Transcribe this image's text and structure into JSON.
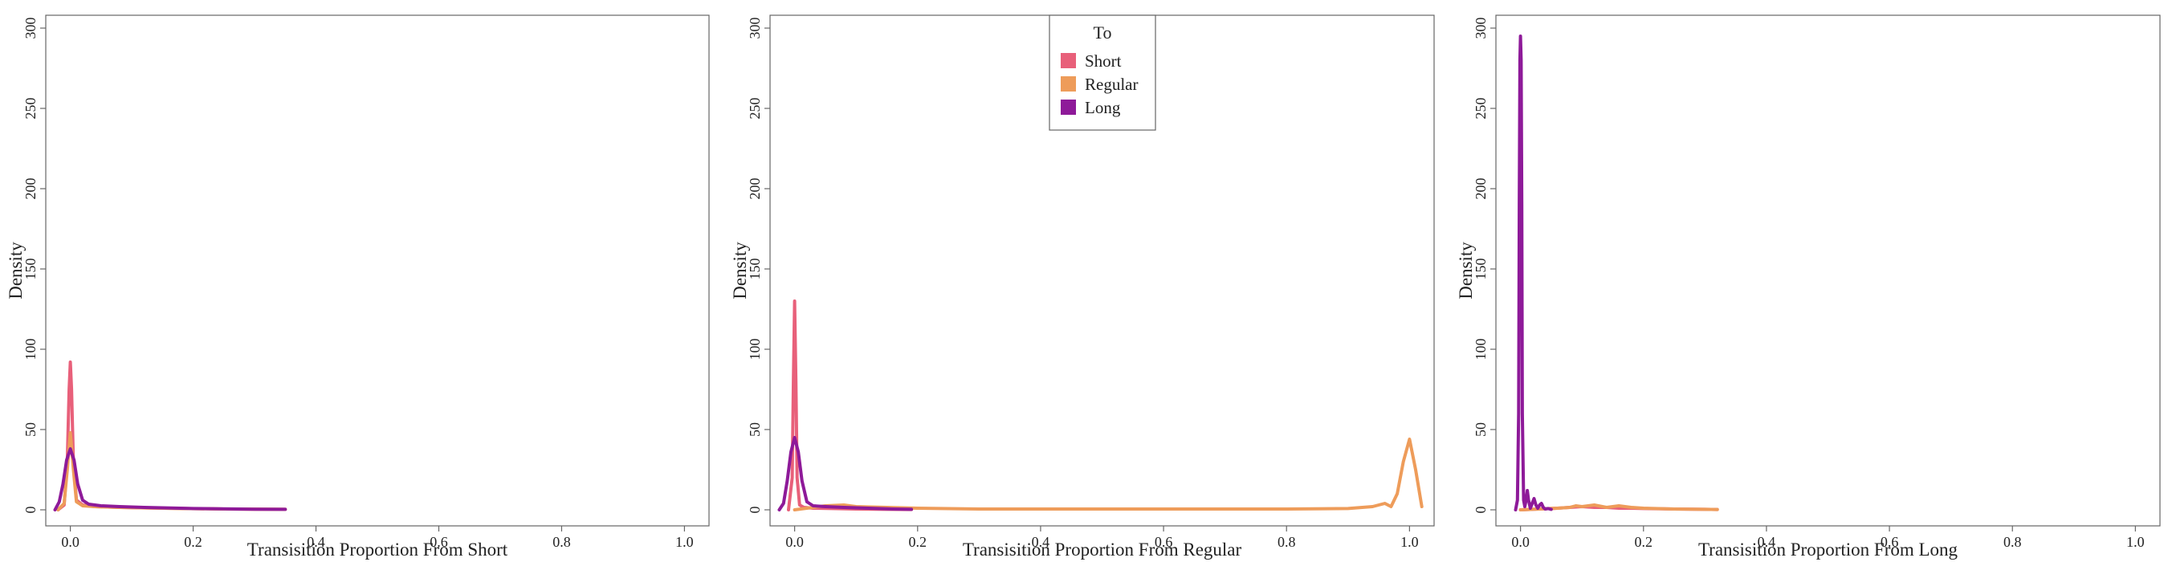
{
  "legend": {
    "title": "To",
    "placement": "top-center",
    "entries": [
      {
        "name": "Short",
        "color": "#E8607A"
      },
      {
        "name": "Regular",
        "color": "#EE9C5A"
      },
      {
        "name": "Long",
        "color": "#8E1A99"
      }
    ]
  },
  "chart_data": [
    {
      "type": "line",
      "xlabel": "Transisition Proportion From Short",
      "ylabel": "Density",
      "xlim": [
        -0.04,
        1.04
      ],
      "ylim": [
        -10,
        308
      ],
      "xticks": [
        0.0,
        0.2,
        0.4,
        0.6,
        0.8,
        1.0
      ],
      "xtick_labels": [
        "0.0",
        "0.2",
        "0.4",
        "0.6",
        "0.8",
        "1.0"
      ],
      "yticks": [
        0,
        50,
        100,
        150,
        200,
        250,
        300
      ],
      "ytick_labels": [
        "0",
        "50",
        "100",
        "150",
        "200",
        "250",
        "300"
      ],
      "grid": false,
      "series": [
        {
          "name": "Short",
          "x": [
            -0.02,
            -0.01,
            -0.005,
            -0.002,
            0.0,
            0.002,
            0.005,
            0.01,
            0.02,
            0.04,
            0.08,
            0.15,
            0.25,
            0.35
          ],
          "y": [
            0,
            3,
            30,
            75,
            92,
            75,
            30,
            6,
            3,
            2,
            1.5,
            1,
            0.5,
            0.3
          ]
        },
        {
          "name": "Regular",
          "x": [
            -0.02,
            -0.01,
            -0.005,
            0.0,
            0.005,
            0.01,
            0.02,
            0.04,
            0.08,
            0.15,
            0.25,
            0.35
          ],
          "y": [
            0,
            4,
            25,
            48,
            25,
            5,
            2.5,
            2,
            1.5,
            1,
            0.5,
            0.3
          ]
        },
        {
          "name": "Long",
          "x": [
            -0.025,
            -0.018,
            -0.012,
            -0.006,
            0.0,
            0.006,
            0.012,
            0.02,
            0.03,
            0.05,
            0.08,
            0.12,
            0.2,
            0.3,
            0.35
          ],
          "y": [
            0,
            5,
            16,
            31,
            38,
            31,
            16,
            6,
            3.5,
            2.5,
            2,
            1.5,
            0.8,
            0.4,
            0.3
          ]
        }
      ]
    },
    {
      "type": "line",
      "xlabel": "Transisition Proportion From Regular",
      "ylabel": "Density",
      "xlim": [
        -0.04,
        1.04
      ],
      "ylim": [
        -10,
        308
      ],
      "xticks": [
        0.0,
        0.2,
        0.4,
        0.6,
        0.8,
        1.0
      ],
      "xtick_labels": [
        "0.0",
        "0.2",
        "0.4",
        "0.6",
        "0.8",
        "1.0"
      ],
      "yticks": [
        0,
        50,
        100,
        150,
        200,
        250,
        300
      ],
      "ytick_labels": [
        "0",
        "50",
        "100",
        "150",
        "200",
        "250",
        "300"
      ],
      "grid": false,
      "series": [
        {
          "name": "Short",
          "x": [
            -0.01,
            -0.004,
            -0.002,
            0.0,
            0.002,
            0.004,
            0.008,
            0.015,
            0.03,
            0.06,
            0.1,
            0.15,
            0.19
          ],
          "y": [
            0,
            20,
            80,
            130,
            80,
            20,
            3,
            1.5,
            1,
            0.8,
            0.5,
            0.3,
            0.2
          ]
        },
        {
          "name": "Regular",
          "x": [
            0.0,
            0.02,
            0.05,
            0.08,
            0.1,
            0.15,
            0.2,
            0.3,
            0.4,
            0.5,
            0.6,
            0.7,
            0.8,
            0.9,
            0.94,
            0.96,
            0.97,
            0.98,
            0.99,
            1.0,
            1.01,
            1.02
          ],
          "y": [
            0,
            1,
            2.5,
            3,
            2,
            1.5,
            1,
            0.5,
            0.5,
            0.5,
            0.5,
            0.5,
            0.5,
            0.8,
            2,
            4,
            2,
            10,
            30,
            44,
            25,
            2
          ]
        },
        {
          "name": "Long",
          "x": [
            -0.025,
            -0.018,
            -0.012,
            -0.006,
            0.0,
            0.006,
            0.012,
            0.02,
            0.03,
            0.05,
            0.08,
            0.12,
            0.16,
            0.19
          ],
          "y": [
            0,
            4,
            18,
            36,
            45,
            36,
            18,
            5,
            2.5,
            2,
            1.5,
            1,
            0.5,
            0.3
          ]
        }
      ]
    },
    {
      "type": "line",
      "xlabel": "Transisition Proportion From Long",
      "ylabel": "Density",
      "xlim": [
        -0.04,
        1.04
      ],
      "ylim": [
        -10,
        308
      ],
      "xticks": [
        0.0,
        0.2,
        0.4,
        0.6,
        0.8,
        1.0
      ],
      "xtick_labels": [
        "0.0",
        "0.2",
        "0.4",
        "0.6",
        "0.8",
        "1.0"
      ],
      "yticks": [
        0,
        50,
        100,
        150,
        200,
        250,
        300
      ],
      "ytick_labels": [
        "0",
        "50",
        "100",
        "150",
        "200",
        "250",
        "300"
      ],
      "grid": false,
      "series": [
        {
          "name": "Short",
          "x": [
            0.0,
            0.03,
            0.06,
            0.08,
            0.1,
            0.12,
            0.14,
            0.16,
            0.18,
            0.2,
            0.25,
            0.3,
            0.32
          ],
          "y": [
            0,
            0.5,
            1,
            1.5,
            2,
            1.5,
            1.5,
            1,
            1,
            0.8,
            0.5,
            0.3,
            0.2
          ]
        },
        {
          "name": "Regular",
          "x": [
            0.0,
            0.03,
            0.06,
            0.08,
            0.09,
            0.1,
            0.12,
            0.14,
            0.16,
            0.18,
            0.2,
            0.25,
            0.3,
            0.32
          ],
          "y": [
            0,
            0.5,
            1,
            1.5,
            2.5,
            2,
            3,
            1.5,
            2.5,
            1.5,
            1,
            0.5,
            0.3,
            0.2
          ]
        },
        {
          "name": "Long",
          "x": [
            -0.008,
            -0.005,
            -0.003,
            -0.002,
            -0.001,
            0.0,
            0.001,
            0.002,
            0.003,
            0.005,
            0.007,
            0.009,
            0.011,
            0.013,
            0.016,
            0.019,
            0.022,
            0.025,
            0.028,
            0.031,
            0.034,
            0.037,
            0.04,
            0.045,
            0.05
          ],
          "y": [
            0,
            6,
            60,
            190,
            280,
            295,
            280,
            190,
            60,
            6,
            2,
            6,
            12,
            6,
            1,
            4,
            7,
            3,
            1,
            3,
            4,
            1.5,
            0.5,
            0.8,
            0.3
          ]
        }
      ]
    }
  ]
}
